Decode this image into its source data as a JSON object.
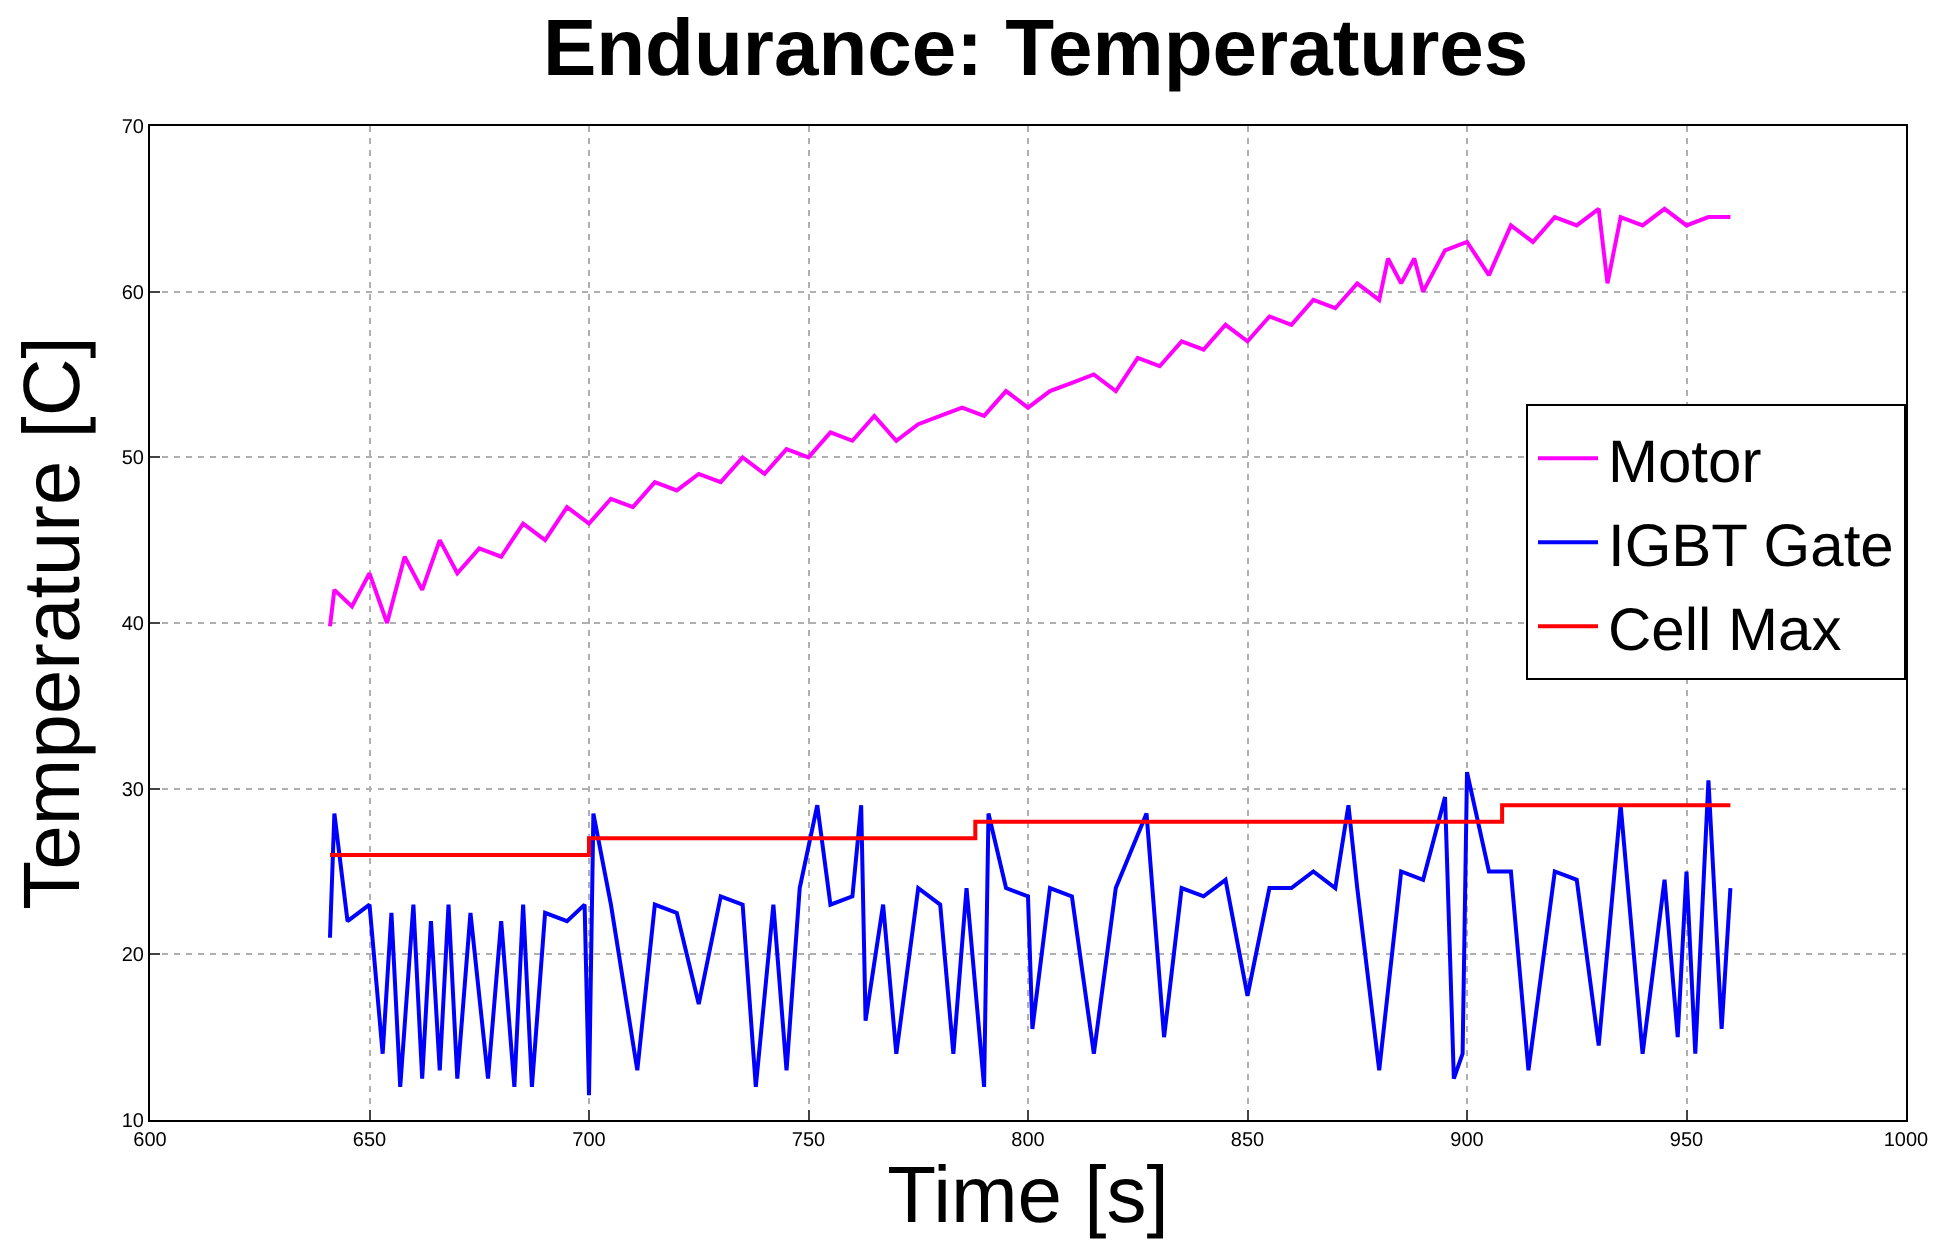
{
  "chart_data": {
    "type": "line",
    "title": "Endurance: Temperatures",
    "xlabel": "Time [s]",
    "ylabel": "Temperature [C]",
    "xlim": [
      600,
      1000
    ],
    "xticks": [
      600,
      650,
      700,
      750,
      800,
      850,
      900,
      950,
      1000
    ],
    "ylim": [
      10,
      70
    ],
    "yticks": [
      10,
      20,
      30,
      40,
      50,
      60,
      70
    ],
    "grid": true,
    "legend": "right",
    "line_style": "solid",
    "series": [
      {
        "name": "Motor",
        "color": "#ff00ff",
        "x": [
          641,
          642,
          646,
          650,
          654,
          658,
          662,
          666,
          670,
          675,
          680,
          685,
          690,
          695,
          700,
          705,
          710,
          715,
          720,
          725,
          730,
          735,
          740,
          745,
          750,
          755,
          760,
          765,
          770,
          775,
          780,
          785,
          790,
          795,
          800,
          805,
          810,
          815,
          820,
          825,
          830,
          835,
          840,
          845,
          850,
          855,
          860,
          865,
          870,
          875,
          880,
          882,
          885,
          888,
          890,
          895,
          900,
          905,
          910,
          915,
          920,
          925,
          930,
          932,
          935,
          940,
          945,
          950,
          955,
          960
        ],
        "values": [
          39.8,
          42,
          41,
          43,
          40,
          44,
          42,
          45,
          43,
          44.5,
          44,
          46,
          45,
          47,
          46,
          47.5,
          47,
          48.5,
          48,
          49,
          48.5,
          50,
          49,
          50.5,
          50,
          51.5,
          51,
          52.5,
          51,
          52,
          52.5,
          53,
          52.5,
          54,
          53,
          54,
          54.5,
          55,
          54,
          56,
          55.5,
          57,
          56.5,
          58,
          57,
          58.5,
          58,
          59.5,
          59,
          60.5,
          59.5,
          62,
          60.5,
          62,
          60,
          62.5,
          63,
          61,
          64,
          63,
          64.5,
          64,
          65,
          60.5,
          64.5,
          64,
          65,
          64,
          64.5,
          64.5
        ]
      },
      {
        "name": "IGBT Gate",
        "color": "#0000ff",
        "x": [
          641,
          642,
          645,
          650,
          653,
          655,
          657,
          660,
          662,
          664,
          666,
          668,
          670,
          673,
          677,
          680,
          683,
          685,
          687,
          690,
          695,
          699,
          700,
          701,
          705,
          711,
          715,
          720,
          725,
          730,
          735,
          738,
          742,
          745,
          748,
          752,
          755,
          760,
          762,
          763,
          767,
          770,
          775,
          780,
          783,
          786,
          790,
          791,
          795,
          800,
          801,
          805,
          810,
          815,
          820,
          827,
          831,
          835,
          840,
          845,
          850,
          855,
          860,
          865,
          870,
          873,
          875,
          880,
          885,
          890,
          895,
          897,
          899,
          900,
          905,
          910,
          914,
          920,
          925,
          930,
          935,
          940,
          945,
          948,
          950,
          952,
          955,
          958,
          960
        ],
        "values": [
          21,
          28.5,
          22,
          23,
          14,
          22.5,
          12,
          23,
          12.5,
          22,
          13,
          23,
          12.5,
          22.5,
          12.5,
          22,
          12,
          23,
          12,
          22.5,
          22,
          23,
          11.5,
          28.5,
          23,
          13,
          23,
          22.5,
          17,
          23.5,
          23,
          12,
          23,
          13,
          24,
          29,
          23,
          23.5,
          29,
          16,
          23,
          14,
          24,
          23,
          14,
          24,
          12,
          28.5,
          24,
          23.5,
          15.5,
          24,
          23.5,
          14,
          24,
          28.5,
          15,
          24,
          23.5,
          24.5,
          17.5,
          24,
          24,
          25,
          24,
          29,
          24,
          13,
          25,
          24.5,
          29.5,
          12.5,
          14,
          31,
          25,
          25,
          13,
          25,
          24.5,
          14.5,
          29,
          14,
          24.5,
          15,
          25,
          14,
          30.5,
          15.5,
          24
        ]
      },
      {
        "name": "Cell Max",
        "color": "#ff0000",
        "type": "step",
        "x": [
          641,
          700,
          788,
          908,
          960
        ],
        "values": [
          26,
          27,
          28,
          29,
          29
        ]
      }
    ]
  }
}
